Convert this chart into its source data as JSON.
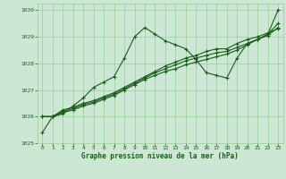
{
  "bg_color": "#cce8d4",
  "grid_color": "#99cc99",
  "line_color": "#1a5c1a",
  "text_color": "#1a5c1a",
  "xlabel": "Graphe pression niveau de la mer (hPa)",
  "ylim": [
    1025.0,
    1030.25
  ],
  "xlim": [
    -0.5,
    23.5
  ],
  "yticks": [
    1025,
    1026,
    1027,
    1028,
    1029,
    1030
  ],
  "xticks": [
    0,
    1,
    2,
    3,
    4,
    5,
    6,
    7,
    8,
    9,
    10,
    11,
    12,
    13,
    14,
    15,
    16,
    17,
    18,
    19,
    20,
    21,
    22,
    23
  ],
  "series": [
    [
      1025.4,
      1026.0,
      1026.1,
      1026.4,
      1026.7,
      1027.1,
      1027.3,
      1027.5,
      1028.2,
      1029.0,
      1029.35,
      1029.1,
      1028.85,
      1028.7,
      1028.55,
      1028.15,
      1027.65,
      1027.55,
      1027.45,
      1028.2,
      1028.75,
      1028.9,
      1029.1,
      1030.0
    ],
    [
      1026.0,
      1026.0,
      1026.15,
      1026.25,
      1026.4,
      1026.5,
      1026.65,
      1026.8,
      1027.0,
      1027.2,
      1027.4,
      1027.55,
      1027.7,
      1027.8,
      1027.95,
      1028.05,
      1028.15,
      1028.25,
      1028.35,
      1028.5,
      1028.7,
      1028.9,
      1029.1,
      1029.5
    ],
    [
      1026.0,
      1026.0,
      1026.2,
      1026.3,
      1026.45,
      1026.55,
      1026.7,
      1026.85,
      1027.05,
      1027.25,
      1027.45,
      1027.65,
      1027.8,
      1027.95,
      1028.1,
      1028.2,
      1028.3,
      1028.4,
      1028.45,
      1028.6,
      1028.75,
      1028.9,
      1029.05,
      1029.35
    ],
    [
      1026.0,
      1026.0,
      1026.25,
      1026.35,
      1026.5,
      1026.6,
      1026.75,
      1026.9,
      1027.1,
      1027.3,
      1027.5,
      1027.7,
      1027.9,
      1028.05,
      1028.2,
      1028.3,
      1028.45,
      1028.55,
      1028.55,
      1028.75,
      1028.9,
      1029.0,
      1029.15,
      1029.3
    ]
  ]
}
